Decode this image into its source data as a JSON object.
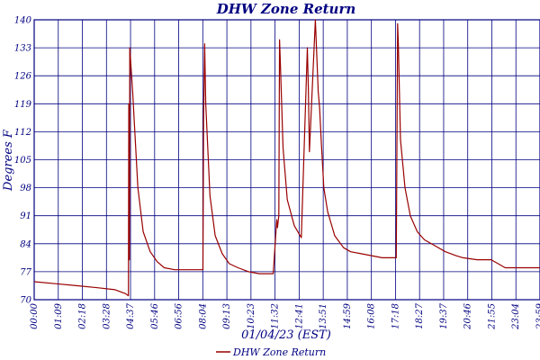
{
  "chart_data": {
    "type": "line",
    "title": "DHW Zone Return",
    "xlabel": "01/04/23 (EST)",
    "ylabel": "Degrees F",
    "ylim": [
      70,
      140
    ],
    "yticks": [
      "70",
      "77",
      "84",
      "91",
      "98",
      "105",
      "112",
      "119",
      "126",
      "133",
      "140"
    ],
    "xlim": [
      "00:00",
      "23:59"
    ],
    "xticks": [
      "00:00",
      "01:09",
      "02:18",
      "03:28",
      "04:37",
      "05:46",
      "06:56",
      "08:04",
      "09:13",
      "10:23",
      "11:32",
      "12:41",
      "13:51",
      "14:59",
      "16:08",
      "17:18",
      "18:27",
      "19:37",
      "20:46",
      "21:55",
      "23:04",
      "23:59"
    ],
    "grid": true,
    "legend_position": "bottom-center",
    "colors": {
      "series": "#990000",
      "grid": "#000080",
      "text": "#000080"
    },
    "series": [
      {
        "name": "DHW Zone Return",
        "x": [
          "00:00",
          "01:00",
          "02:00",
          "03:00",
          "03:50",
          "04:20",
          "04:28",
          "04:29",
          "04:31",
          "04:32",
          "04:40",
          "04:55",
          "05:10",
          "05:30",
          "05:50",
          "06:10",
          "06:40",
          "07:10",
          "07:40",
          "08:00",
          "08:02",
          "08:05",
          "08:08",
          "08:20",
          "08:35",
          "08:55",
          "09:15",
          "09:40",
          "10:10",
          "10:40",
          "11:20",
          "11:30",
          "11:32",
          "11:36",
          "11:38",
          "11:40",
          "11:48",
          "12:00",
          "12:20",
          "12:40",
          "12:57",
          "13:00",
          "13:03",
          "13:20",
          "13:28",
          "13:32",
          "13:37",
          "13:44",
          "13:55",
          "14:15",
          "14:40",
          "15:00",
          "15:30",
          "16:00",
          "16:30",
          "17:00",
          "17:10",
          "17:14",
          "17:16",
          "17:19",
          "17:22",
          "17:35",
          "17:50",
          "18:10",
          "18:30",
          "19:00",
          "19:30",
          "20:00",
          "20:20",
          "21:00",
          "21:40",
          "22:00",
          "22:20",
          "22:40",
          "23:20",
          "23:59"
        ],
        "values": [
          74.5,
          74,
          73.5,
          73,
          72.5,
          71.5,
          71,
          119,
          80,
          133,
          122,
          98,
          87,
          82,
          79.5,
          78,
          77.5,
          77.5,
          77.5,
          77.5,
          115,
          134,
          119,
          96,
          86,
          81.5,
          79,
          78,
          77,
          76.5,
          76.5,
          90,
          88,
          91,
          135,
          130,
          108,
          95,
          88.5,
          85.5,
          133,
          123,
          107,
          140,
          122,
          118,
          109,
          98,
          92,
          86,
          83,
          82,
          81.5,
          81,
          80.5,
          80.5,
          80.5,
          139,
          134,
          122,
          110,
          98,
          91,
          87,
          85,
          83.5,
          82,
          81,
          80.5,
          80,
          80,
          79,
          78,
          78,
          78,
          78
        ]
      }
    ]
  }
}
